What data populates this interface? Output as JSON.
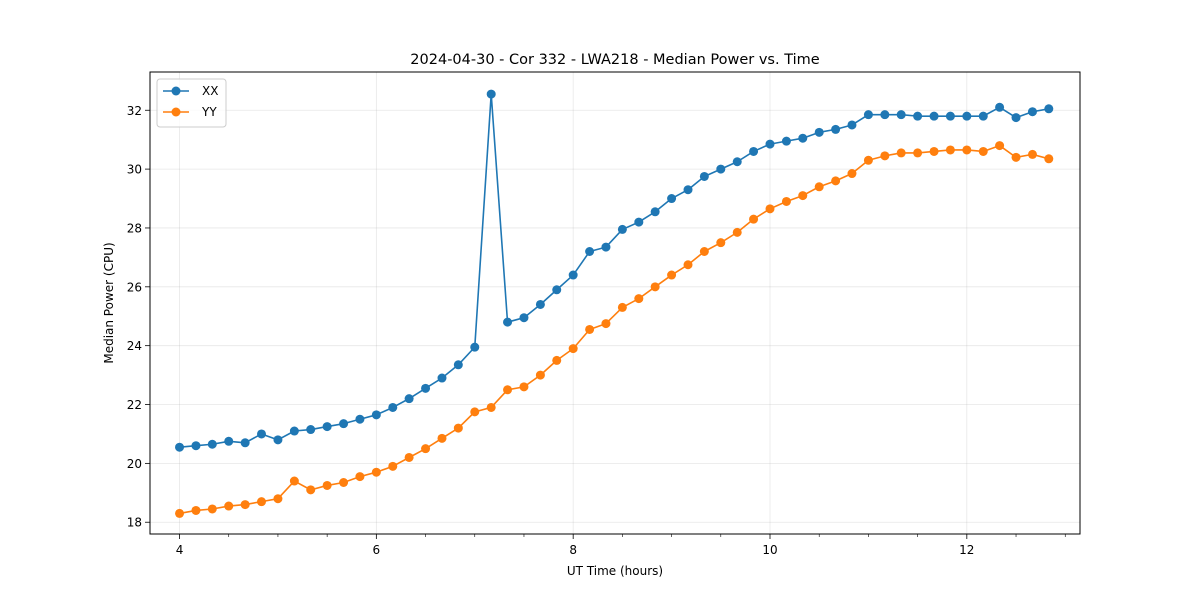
{
  "chart_data": {
    "type": "line",
    "title": "2024-04-30 - Cor 332 - LWA218 - Median Power vs. Time",
    "xlabel": "UT Time (hours)",
    "ylabel": "Median Power (CPU)",
    "xlim": [
      3.7,
      13.15
    ],
    "ylim": [
      17.6,
      33.3
    ],
    "xticks": [
      4,
      6,
      8,
      10,
      12
    ],
    "xtick_labels": [
      "4",
      "6",
      "8",
      "10",
      "12"
    ],
    "yticks": [
      18,
      20,
      22,
      24,
      26,
      28,
      30,
      32
    ],
    "ytick_labels": [
      "18",
      "20",
      "22",
      "24",
      "26",
      "28",
      "30",
      "32"
    ],
    "grid": true,
    "legend_position": "top-left",
    "x": [
      4.0,
      4.167,
      4.333,
      4.5,
      4.667,
      4.833,
      5.0,
      5.167,
      5.333,
      5.5,
      5.667,
      5.833,
      6.0,
      6.167,
      6.333,
      6.5,
      6.667,
      6.833,
      7.0,
      7.167,
      7.333,
      7.5,
      7.667,
      7.833,
      8.0,
      8.167,
      8.333,
      8.5,
      8.667,
      8.833,
      9.0,
      9.167,
      9.333,
      9.5,
      9.667,
      9.833,
      10.0,
      10.167,
      10.333,
      10.5,
      10.667,
      10.833,
      11.0,
      11.167,
      11.333,
      11.5,
      11.667,
      11.833,
      12.0,
      12.167,
      12.333,
      12.5,
      12.667,
      12.833
    ],
    "series": [
      {
        "name": "XX",
        "color": "#1f77b4",
        "values": [
          20.55,
          20.6,
          20.65,
          20.75,
          20.7,
          21.0,
          20.8,
          21.1,
          21.15,
          21.25,
          21.35,
          21.5,
          21.65,
          21.9,
          22.2,
          22.55,
          22.9,
          23.35,
          23.95,
          32.55,
          24.8,
          24.95,
          25.4,
          25.9,
          26.4,
          27.2,
          27.35,
          27.95,
          28.2,
          28.55,
          29.0,
          29.3,
          29.75,
          30.0,
          30.25,
          30.6,
          30.85,
          30.95,
          31.05,
          31.25,
          31.35,
          31.5,
          31.85,
          31.85,
          31.85,
          31.8,
          31.8,
          31.8,
          31.8,
          31.8,
          32.1,
          31.75,
          31.95,
          32.05
        ]
      },
      {
        "name": "YY",
        "color": "#ff7f0e",
        "values": [
          18.3,
          18.4,
          18.45,
          18.55,
          18.6,
          18.7,
          18.8,
          19.4,
          19.1,
          19.25,
          19.35,
          19.55,
          19.7,
          19.9,
          20.2,
          20.5,
          20.85,
          21.2,
          21.75,
          21.9,
          22.5,
          22.6,
          23.0,
          23.5,
          23.9,
          24.55,
          24.75,
          25.3,
          25.6,
          26.0,
          26.4,
          26.75,
          27.2,
          27.5,
          27.85,
          28.3,
          28.65,
          28.9,
          29.1,
          29.4,
          29.6,
          29.85,
          30.3,
          30.45,
          30.55,
          30.55,
          30.6,
          30.65,
          30.65,
          30.6,
          30.8,
          30.4,
          30.5,
          30.35
        ]
      }
    ]
  }
}
